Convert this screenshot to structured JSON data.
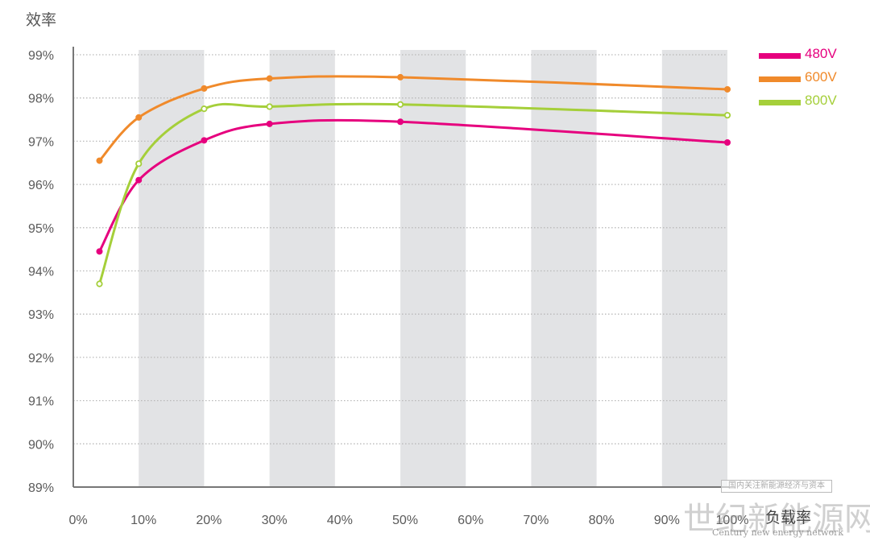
{
  "chart_data": {
    "type": "line",
    "ylabel": "效率",
    "xlabel": "负载率",
    "xlim": [
      0,
      100
    ],
    "ylim": [
      89,
      99
    ],
    "x_ticks": [
      "0%",
      "10%",
      "20%",
      "30%",
      "40%",
      "50%",
      "60%",
      "70%",
      "80%",
      "90%",
      "100%"
    ],
    "y_ticks": [
      "89%",
      "90%",
      "91%",
      "92%",
      "93%",
      "94%",
      "95%",
      "96%",
      "97%",
      "98%",
      "99%"
    ],
    "grid": "horizontal dotted",
    "legend_position": "top-right",
    "series": [
      {
        "name": "480V",
        "color": "#e6007e",
        "marker": "filled",
        "x": [
          4,
          10,
          20,
          30,
          50,
          100
        ],
        "y": [
          94.45,
          96.1,
          97.02,
          97.4,
          97.45,
          96.97
        ]
      },
      {
        "name": "600V",
        "color": "#f08a2b",
        "marker": "filled",
        "x": [
          4,
          10,
          20,
          30,
          50,
          100
        ],
        "y": [
          96.55,
          97.55,
          98.22,
          98.45,
          98.48,
          98.2
        ]
      },
      {
        "name": "800V",
        "color": "#a5cf3a",
        "marker": "hollow",
        "x": [
          4,
          10,
          20,
          30,
          50,
          100
        ],
        "y": [
          93.7,
          96.48,
          97.75,
          97.8,
          97.85,
          97.6
        ]
      }
    ]
  },
  "watermark": {
    "box_text": "国内关注新能源经济与资本",
    "main_text": "世纪新能源网",
    "sub_text": "Century new energy network"
  }
}
